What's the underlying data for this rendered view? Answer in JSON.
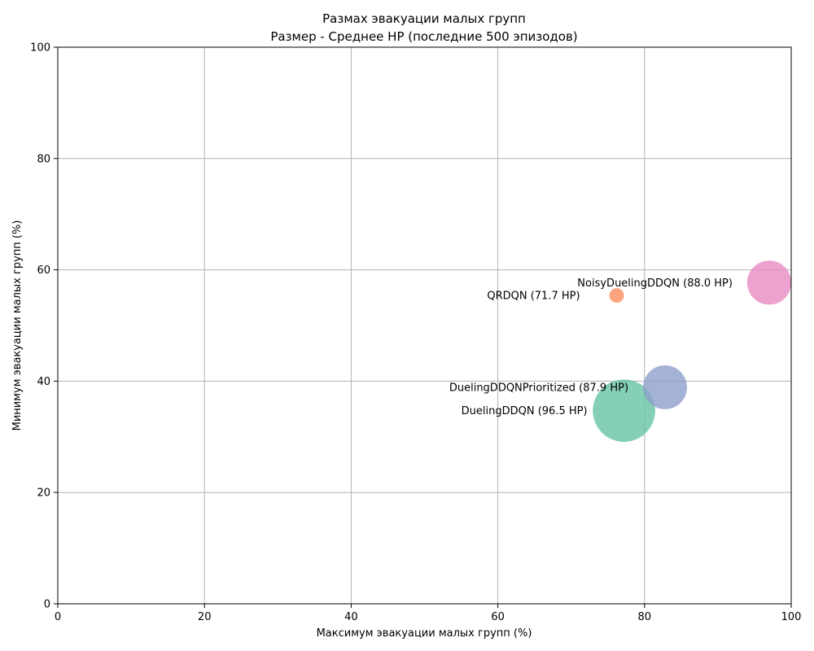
{
  "chart_data": {
    "type": "scatter",
    "title": "Размах эвакуации малых групп",
    "subtitle": "Размер - Среднее HP (последние 500 эпизодов)",
    "xlabel": "Максимум эвакуации малых групп (%)",
    "ylabel": "Минимум эвакуации малых групп (%)",
    "xlim": [
      0,
      100
    ],
    "ylim": [
      0,
      100
    ],
    "xticks": [
      "0",
      "20",
      "40",
      "60",
      "80",
      "100"
    ],
    "yticks": [
      "0",
      "20",
      "40",
      "60",
      "80",
      "100"
    ],
    "grid": true,
    "size_encodes": "average HP",
    "points": [
      {
        "label": "DuelingDDQN (96.5 HP)",
        "x": 77.2,
        "y": 34.7,
        "hp": 96.5,
        "color": "#66c2a5"
      },
      {
        "label": "QRDQN (71.7 HP)",
        "x": 76.2,
        "y": 55.4,
        "hp": 71.7,
        "color": "#fc8d62"
      },
      {
        "label": "DuelingDDQNPrioritized (87.9 HP)",
        "x": 82.8,
        "y": 38.9,
        "hp": 87.9,
        "color": "#8da0cb"
      },
      {
        "label": "NoisyDuelingDDQN (88.0 HP)",
        "x": 97.0,
        "y": 57.7,
        "hp": 88.0,
        "color": "#e78ac3"
      }
    ]
  }
}
